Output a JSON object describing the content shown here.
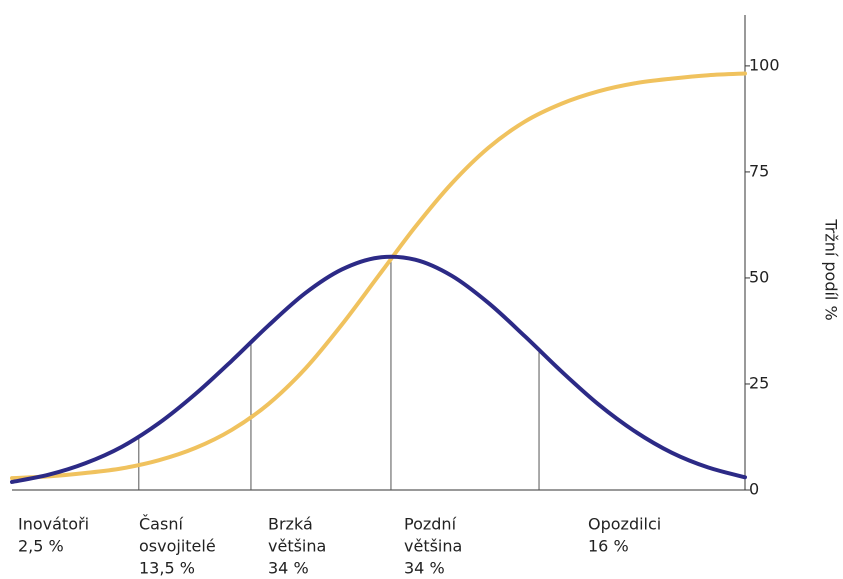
{
  "chart_data": {
    "type": "line",
    "y_axis_label": "Tržní podíl %",
    "x": [
      0,
      5,
      10,
      15,
      20,
      25,
      30,
      35,
      40,
      45,
      50,
      55,
      60,
      65,
      70,
      75,
      80,
      85,
      90,
      95,
      100
    ],
    "xlim": [
      0,
      100
    ],
    "ylim": [
      0,
      112
    ],
    "yticks": [
      0,
      25,
      50,
      75,
      100
    ],
    "grid": false,
    "series": [
      {
        "color": "#2c2a86",
        "values": [
          1.9,
          3.6,
          6.3,
          10.2,
          15.7,
          22.6,
          30.5,
          38.8,
          46.4,
          52.0,
          54.8,
          54.3,
          50.5,
          44.1,
          36.2,
          27.9,
          20.2,
          13.8,
          8.8,
          5.3,
          3.0
        ]
      },
      {
        "color": "#f0c25e",
        "values": [
          2.8,
          3.2,
          4.0,
          5.1,
          7.0,
          9.9,
          14.2,
          20.3,
          28.6,
          39.0,
          50.5,
          62.0,
          72.3,
          80.7,
          86.9,
          91.1,
          94.0,
          95.9,
          97.0,
          97.8,
          98.2
        ]
      }
    ],
    "dividers": [
      17.3,
      32.6,
      51.7,
      71.9
    ],
    "segments": [
      {
        "label": [
          "Inovátoři"
        ],
        "share": "2,5 %"
      },
      {
        "label": [
          "Časní",
          "osvojitelé"
        ],
        "share": "13,5 %"
      },
      {
        "label": [
          "Brzká",
          "většina"
        ],
        "share": "34 %"
      },
      {
        "label": [
          "Pozdní",
          "většina"
        ],
        "share": "34 %"
      },
      {
        "label": [
          "Opozdilci"
        ],
        "share": "16 %"
      }
    ]
  }
}
